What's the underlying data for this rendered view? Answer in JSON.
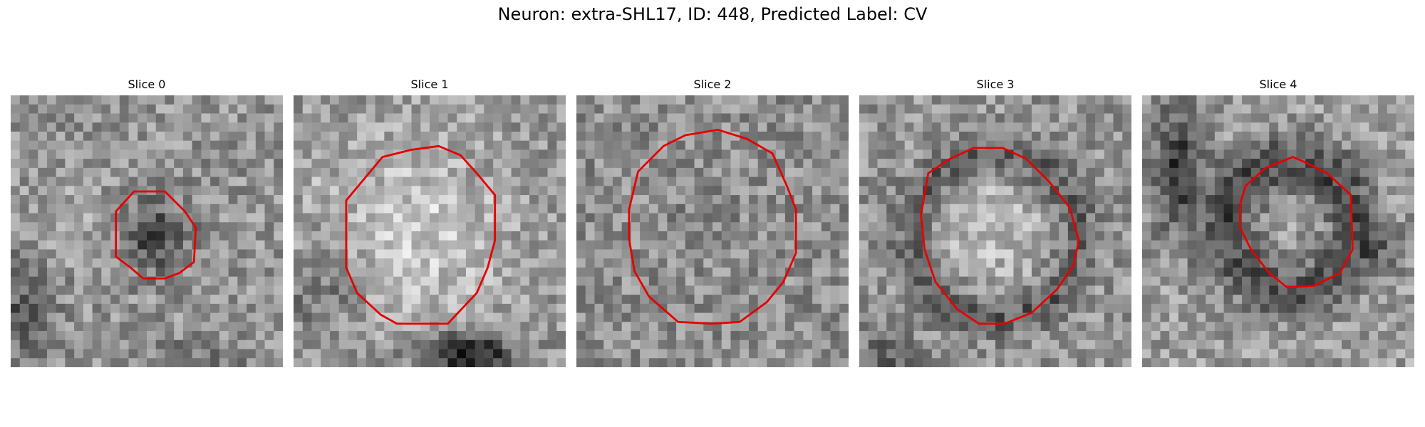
{
  "figure": {
    "title": "Neuron: extra-SHL17, ID: 448, Predicted Label: CV"
  },
  "panels": [
    {
      "title": "Slice 0",
      "scene": "noisy grayscale microscopy patch; dark compact blob near center with red contour drawn around it; dark region at lower left"
    },
    {
      "title": "Slice 1",
      "scene": "noisy grayscale patch; large bright round body enclosed by a red contour; very dark band at bottom center"
    },
    {
      "title": "Slice 2",
      "scene": "noisy grayscale patch with uniform speckle; large red contour enclosing mid-gray region"
    },
    {
      "title": "Slice 3",
      "scene": "noisy grayscale patch; bright round body with dark rim, enclosed by red contour"
    },
    {
      "title": "Slice 4",
      "scene": "noisy grayscale patch; dark ring structure with red contour inside; dark diagonal band at upper left"
    }
  ],
  "colors": {
    "contour": "#e60000",
    "background": "#ffffff"
  }
}
